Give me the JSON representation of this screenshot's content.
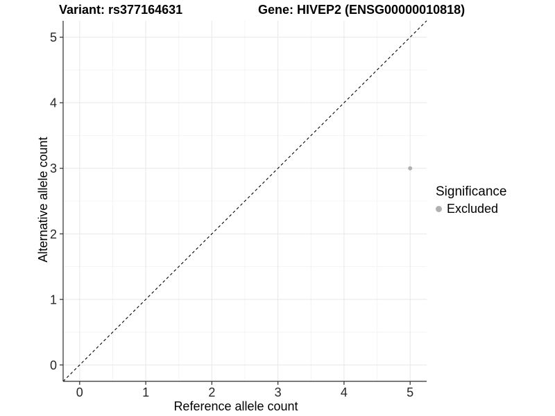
{
  "chart_data": {
    "type": "scatter",
    "titles": {
      "left": "Variant: rs377164631",
      "right": "Gene: HIVEP2 (ENSG00000010818)"
    },
    "xlabel": "Reference allele count",
    "ylabel": "Alternative allele count",
    "xlim": [
      -0.25,
      5.25
    ],
    "ylim": [
      -0.25,
      5.25
    ],
    "xticks": [
      0,
      1,
      2,
      3,
      4,
      5
    ],
    "yticks": [
      0,
      1,
      2,
      3,
      4,
      5
    ],
    "grid": {
      "major": true,
      "minor": true
    },
    "points": [
      {
        "x": 5,
        "y": 3,
        "significance": "Excluded"
      }
    ],
    "reference_line": {
      "type": "identity",
      "equation": "y = x",
      "from": [
        -0.25,
        -0.25
      ],
      "to": [
        5.25,
        5.25
      ],
      "style": "dashed"
    },
    "legend": {
      "title": "Significance",
      "position": "right",
      "entries": [
        {
          "label": "Excluded",
          "color": "#b0b0b0",
          "marker": "circle"
        }
      ]
    }
  },
  "colors": {
    "background": "#ffffff",
    "grid_major": "#e7e7e7",
    "grid_minor": "#f4f4f4",
    "axis_line": "#2b2b2b",
    "tick": "#2b2b2b",
    "text": "#000000",
    "point": "#b0b0b0",
    "reference_line": "#000000"
  }
}
